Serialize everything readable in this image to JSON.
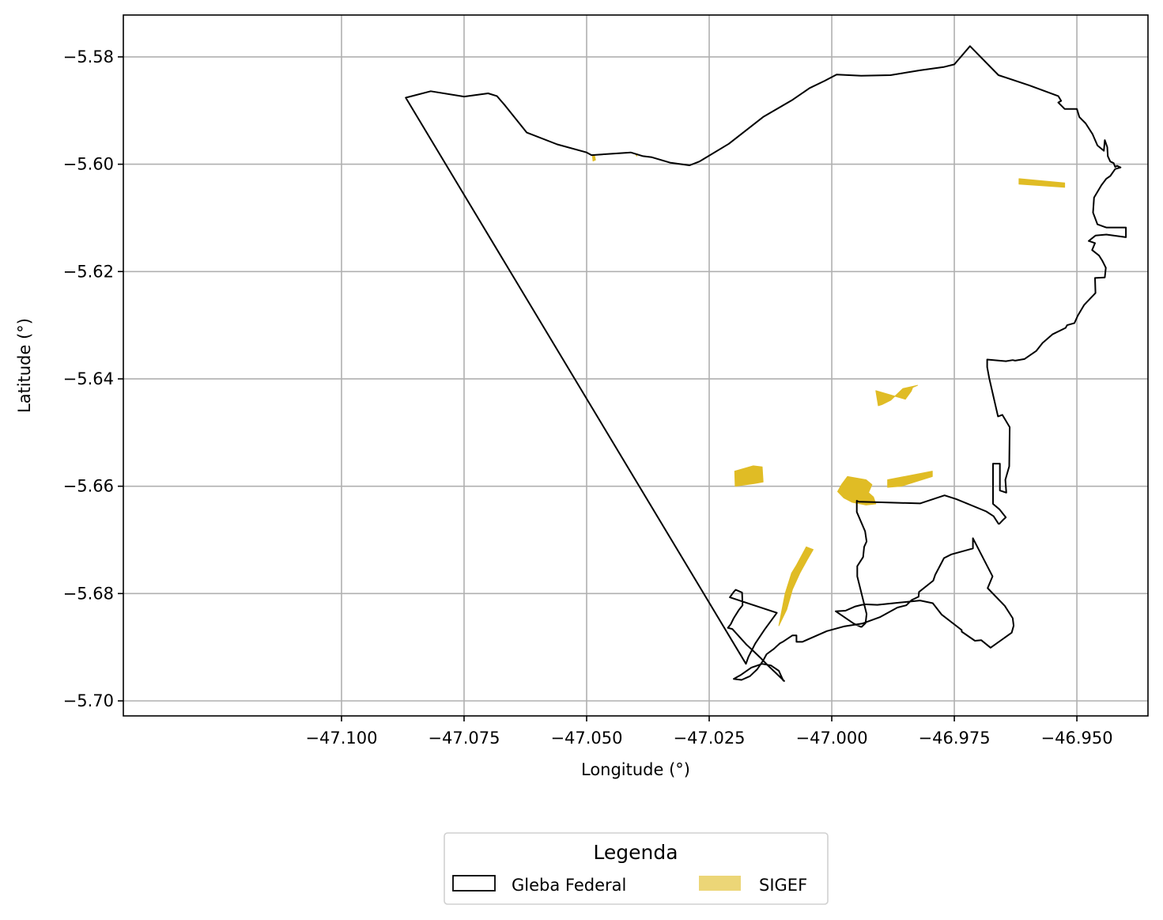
{
  "chart_data": {
    "type": "map",
    "xlabel": "Longitude (°)",
    "ylabel": "Latitude (°)",
    "xlim": [
      -47.1445,
      -46.9355
    ],
    "ylim": [
      -5.7028,
      -5.5722
    ],
    "grid": true,
    "x_ticks": [
      {
        "value": -47.1,
        "label": "−47.100"
      },
      {
        "value": -47.075,
        "label": "−47.075"
      },
      {
        "value": -47.05,
        "label": "−47.050"
      },
      {
        "value": -47.025,
        "label": "−47.025"
      },
      {
        "value": -47.0,
        "label": "−47.000"
      },
      {
        "value": -46.975,
        "label": "−46.975"
      },
      {
        "value": -46.95,
        "label": "−46.950"
      }
    ],
    "y_ticks": [
      {
        "value": -5.58,
        "label": "−5.58"
      },
      {
        "value": -5.6,
        "label": "−5.60"
      },
      {
        "value": -5.62,
        "label": "−5.62"
      },
      {
        "value": -5.64,
        "label": "−5.64"
      },
      {
        "value": -5.66,
        "label": "−5.66"
      },
      {
        "value": -5.68,
        "label": "−5.68"
      },
      {
        "value": -5.7,
        "label": "−5.70"
      }
    ],
    "gleba_federal": {
      "name": "Gleba Federal",
      "stroke": "#000000",
      "coords": [
        [
          -47.0869,
          -5.5876
        ],
        [
          -47.0818,
          -5.5864
        ],
        [
          -47.075,
          -5.5874
        ],
        [
          -47.0701,
          -5.5868
        ],
        [
          -47.0683,
          -5.5873
        ],
        [
          -47.0666,
          -5.5891
        ],
        [
          -47.0622,
          -5.5941
        ],
        [
          -47.056,
          -5.5963
        ],
        [
          -47.05,
          -5.5978
        ],
        [
          -47.049,
          -5.5983
        ],
        [
          -47.044,
          -5.598
        ],
        [
          -47.041,
          -5.5978
        ],
        [
          -47.0385,
          -5.5985
        ],
        [
          -47.0367,
          -5.5987
        ],
        [
          -47.033,
          -5.5997
        ],
        [
          -47.029,
          -5.6002
        ],
        [
          -47.027,
          -5.5995
        ],
        [
          -47.021,
          -5.5962
        ],
        [
          -47.014,
          -5.5912
        ],
        [
          -47.008,
          -5.588
        ],
        [
          -47.0045,
          -5.5858
        ],
        [
          -47.0015,
          -5.5845
        ],
        [
          -46.999,
          -5.5833
        ],
        [
          -46.994,
          -5.5835
        ],
        [
          -46.988,
          -5.5834
        ],
        [
          -46.982,
          -5.5825
        ],
        [
          -46.9772,
          -5.5819
        ],
        [
          -46.975,
          -5.5814
        ],
        [
          -46.9718,
          -5.578
        ],
        [
          -46.966,
          -5.5834
        ],
        [
          -46.9597,
          -5.5853
        ],
        [
          -46.9538,
          -5.5873
        ],
        [
          -46.9532,
          -5.5882
        ],
        [
          -46.9538,
          -5.5885
        ],
        [
          -46.9525,
          -5.5897
        ],
        [
          -46.95,
          -5.5897
        ],
        [
          -46.9495,
          -5.5912
        ],
        [
          -46.9482,
          -5.5924
        ],
        [
          -46.9468,
          -5.5944
        ],
        [
          -46.9458,
          -5.5965
        ],
        [
          -46.9445,
          -5.5975
        ],
        [
          -46.9443,
          -5.5955
        ],
        [
          -46.9438,
          -5.5968
        ],
        [
          -46.9437,
          -5.5985
        ],
        [
          -46.9432,
          -5.5995
        ],
        [
          -46.9425,
          -5.5998
        ],
        [
          -46.9422,
          -5.6005
        ],
        [
          -46.9418,
          -5.6003
        ],
        [
          -46.9411,
          -5.6006
        ],
        [
          -46.9422,
          -5.6009
        ],
        [
          -46.9432,
          -5.6022
        ],
        [
          -46.944,
          -5.6027
        ],
        [
          -46.945,
          -5.6039
        ],
        [
          -46.9465,
          -5.6062
        ],
        [
          -46.9467,
          -5.609
        ],
        [
          -46.9458,
          -5.6112
        ],
        [
          -46.944,
          -5.6118
        ],
        [
          -46.94,
          -5.6118
        ],
        [
          -46.94,
          -5.6136
        ],
        [
          -46.944,
          -5.6131
        ],
        [
          -46.9462,
          -5.6133
        ],
        [
          -46.9476,
          -5.6143
        ],
        [
          -46.9463,
          -5.6147
        ],
        [
          -46.9469,
          -5.616
        ],
        [
          -46.9455,
          -5.617
        ],
        [
          -46.9448,
          -5.618
        ],
        [
          -46.9441,
          -5.6193
        ],
        [
          -46.9443,
          -5.6211
        ],
        [
          -46.9463,
          -5.6212
        ],
        [
          -46.9462,
          -5.624
        ],
        [
          -46.9485,
          -5.6262
        ],
        [
          -46.9498,
          -5.6282
        ],
        [
          -46.9505,
          -5.6296
        ],
        [
          -46.952,
          -5.63
        ],
        [
          -46.9523,
          -5.6305
        ],
        [
          -46.955,
          -5.6317
        ],
        [
          -46.957,
          -5.6333
        ],
        [
          -46.9583,
          -5.6348
        ],
        [
          -46.9607,
          -5.6363
        ],
        [
          -46.9626,
          -5.6366
        ],
        [
          -46.9631,
          -5.6365
        ],
        [
          -46.9645,
          -5.6367
        ],
        [
          -46.9683,
          -5.6364
        ],
        [
          -46.9683,
          -5.6378
        ],
        [
          -46.9679,
          -5.6398
        ],
        [
          -46.9661,
          -5.647
        ],
        [
          -46.9652,
          -5.6467
        ],
        [
          -46.9637,
          -5.649
        ],
        [
          -46.9638,
          -5.6563
        ],
        [
          -46.9646,
          -5.6588
        ],
        [
          -46.9644,
          -5.6612
        ],
        [
          -46.9657,
          -5.6608
        ],
        [
          -46.9657,
          -5.6558
        ],
        [
          -46.9671,
          -5.6558
        ],
        [
          -46.9671,
          -5.6633
        ],
        [
          -46.9658,
          -5.6643
        ],
        [
          -46.9645,
          -5.6658
        ],
        [
          -46.9651,
          -5.6663
        ],
        [
          -46.9658,
          -5.667
        ],
        [
          -46.966,
          -5.667
        ],
        [
          -46.967,
          -5.6656
        ],
        [
          -46.9685,
          -5.6647
        ],
        [
          -46.9746,
          -5.6624
        ],
        [
          -46.977,
          -5.6617
        ],
        [
          -46.982,
          -5.6632
        ],
        [
          -46.9898,
          -5.663
        ],
        [
          -46.9945,
          -5.6629
        ],
        [
          -46.9949,
          -5.6627
        ],
        [
          -46.9949,
          -5.6648
        ],
        [
          -46.9932,
          -5.6684
        ],
        [
          -46.9929,
          -5.6703
        ],
        [
          -46.9934,
          -5.6713
        ],
        [
          -46.9936,
          -5.6732
        ],
        [
          -46.9948,
          -5.6749
        ],
        [
          -46.9948,
          -5.6768
        ],
        [
          -46.9929,
          -5.6838
        ],
        [
          -46.9931,
          -5.6855
        ],
        [
          -46.9939,
          -5.6862
        ],
        [
          -46.9941,
          -5.6862
        ],
        [
          -46.9955,
          -5.6856
        ],
        [
          -46.9992,
          -5.6833
        ],
        [
          -46.9972,
          -5.6832
        ],
        [
          -46.9952,
          -5.6824
        ],
        [
          -46.9934,
          -5.682
        ],
        [
          -46.9907,
          -5.6821
        ],
        [
          -46.9864,
          -5.6817
        ],
        [
          -46.982,
          -5.6813
        ],
        [
          -46.9794,
          -5.6818
        ],
        [
          -46.9776,
          -5.6839
        ],
        [
          -46.9735,
          -5.6868
        ],
        [
          -46.9735,
          -5.6871
        ],
        [
          -46.9708,
          -5.6888
        ],
        [
          -46.9695,
          -5.6887
        ],
        [
          -46.9676,
          -5.6901
        ],
        [
          -46.9633,
          -5.6873
        ],
        [
          -46.9629,
          -5.686
        ],
        [
          -46.9631,
          -5.6846
        ],
        [
          -46.9647,
          -5.6823
        ],
        [
          -46.9682,
          -5.679
        ],
        [
          -46.9672,
          -5.6768
        ],
        [
          -46.9712,
          -5.6697
        ],
        [
          -46.9712,
          -5.6716
        ],
        [
          -46.9756,
          -5.6727
        ],
        [
          -46.9771,
          -5.6734
        ],
        [
          -46.9789,
          -5.6765
        ],
        [
          -46.9793,
          -5.6776
        ],
        [
          -46.9822,
          -5.6797
        ],
        [
          -46.9823,
          -5.6806
        ],
        [
          -46.9837,
          -5.6812
        ],
        [
          -46.9848,
          -5.6822
        ],
        [
          -46.9866,
          -5.6826
        ],
        [
          -46.9902,
          -5.6844
        ],
        [
          -46.9938,
          -5.6856
        ],
        [
          -46.9974,
          -5.6861
        ],
        [
          -47.001,
          -5.687
        ],
        [
          -47.006,
          -5.689
        ],
        [
          -47.0072,
          -5.689
        ],
        [
          -47.0072,
          -5.6878
        ],
        [
          -47.008,
          -5.6878
        ],
        [
          -47.01,
          -5.689
        ],
        [
          -47.0106,
          -5.6893
        ],
        [
          -47.0118,
          -5.6903
        ],
        [
          -47.0133,
          -5.6913
        ],
        [
          -47.014,
          -5.6925
        ],
        [
          -47.0152,
          -5.6941
        ],
        [
          -47.0167,
          -5.6954
        ],
        [
          -47.0184,
          -5.6961
        ],
        [
          -47.02,
          -5.6959
        ],
        [
          -47.0186,
          -5.6952
        ],
        [
          -47.0164,
          -5.6938
        ],
        [
          -47.0142,
          -5.6931
        ],
        [
          -47.0124,
          -5.6934
        ],
        [
          -47.0108,
          -5.6944
        ],
        [
          -47.0099,
          -5.6962
        ],
        [
          -47.0097,
          -5.6963
        ],
        [
          -47.0129,
          -5.6935
        ],
        [
          -47.0144,
          -5.6921
        ],
        [
          -47.016,
          -5.6907
        ],
        [
          -47.0174,
          -5.6895
        ],
        [
          -47.0188,
          -5.6881
        ],
        [
          -47.0203,
          -5.6866
        ],
        [
          -47.0212,
          -5.6864
        ],
        [
          -47.0206,
          -5.6857
        ],
        [
          -47.02,
          -5.6846
        ],
        [
          -47.0189,
          -5.683
        ],
        [
          -47.0182,
          -5.6822
        ],
        [
          -47.0183,
          -5.6798
        ],
        [
          -47.0196,
          -5.6793
        ],
        [
          -47.02,
          -5.6797
        ],
        [
          -47.0208,
          -5.6807
        ],
        [
          -47.0112,
          -5.6836
        ],
        [
          -47.0137,
          -5.6867
        ],
        [
          -47.0156,
          -5.6893
        ],
        [
          -47.017,
          -5.6918
        ],
        [
          -47.0175,
          -5.6931
        ]
      ]
    },
    "sigef": {
      "name": "SIGEF",
      "fill": "#e0bc25",
      "legend_fill": "#ecd677",
      "polygons": [
        [
          [
            -46.9618,
            -5.6027
          ],
          [
            -46.9525,
            -5.6035
          ],
          [
            -46.9525,
            -5.6043
          ],
          [
            -46.9618,
            -5.6037
          ]
        ],
        [
          [
            -47.0488,
            -5.5985
          ],
          [
            -47.0484,
            -5.5983
          ],
          [
            -47.0482,
            -5.5992
          ],
          [
            -47.0487,
            -5.5994
          ]
        ],
        [
          [
            -47.04,
            -5.5981
          ],
          [
            -47.0396,
            -5.5981
          ],
          [
            -47.0398,
            -5.5985
          ]
        ],
        [
          [
            -46.991,
            -5.6422
          ],
          [
            -46.985,
            -5.6438
          ],
          [
            -46.9838,
            -5.6423
          ],
          [
            -46.9835,
            -5.6416
          ],
          [
            -46.9825,
            -5.6412
          ],
          [
            -46.9855,
            -5.6418
          ],
          [
            -46.988,
            -5.644
          ],
          [
            -46.9898,
            -5.6448
          ],
          [
            -46.9905,
            -5.645
          ]
        ],
        [
          [
            -47.0198,
            -5.6572
          ],
          [
            -47.016,
            -5.6562
          ],
          [
            -47.0142,
            -5.6564
          ],
          [
            -47.014,
            -5.6592
          ],
          [
            -47.0158,
            -5.6595
          ],
          [
            -47.0197,
            -5.66
          ]
        ],
        [
          [
            -46.9988,
            -5.661
          ],
          [
            -46.998,
            -5.6597
          ],
          [
            -46.9968,
            -5.6582
          ],
          [
            -46.993,
            -5.6588
          ],
          [
            -46.9918,
            -5.6597
          ],
          [
            -46.9925,
            -5.6612
          ],
          [
            -46.9915,
            -5.662
          ],
          [
            -46.991,
            -5.6633
          ],
          [
            -46.993,
            -5.6635
          ],
          [
            -46.9958,
            -5.663
          ],
          [
            -46.9975,
            -5.6622
          ]
        ],
        [
          [
            -46.9886,
            -5.6588
          ],
          [
            -46.9795,
            -5.6572
          ],
          [
            -46.9795,
            -5.6582
          ],
          [
            -46.983,
            -5.6592
          ],
          [
            -46.9858,
            -5.66
          ],
          [
            -46.9886,
            -5.6602
          ]
        ],
        [
          [
            -47.0108,
            -5.686
          ],
          [
            -47.0095,
            -5.68
          ],
          [
            -47.0082,
            -5.6762
          ],
          [
            -47.0072,
            -5.6747
          ],
          [
            -47.0052,
            -5.6713
          ],
          [
            -47.0038,
            -5.6718
          ],
          [
            -47.005,
            -5.6737
          ],
          [
            -47.0065,
            -5.6762
          ],
          [
            -47.008,
            -5.6792
          ],
          [
            -47.0092,
            -5.683
          ]
        ]
      ]
    },
    "legend": {
      "title": "Legenda",
      "placement": "bottom-center",
      "entries": [
        {
          "label": "Gleba Federal"
        },
        {
          "label": "SIGEF"
        }
      ]
    }
  }
}
